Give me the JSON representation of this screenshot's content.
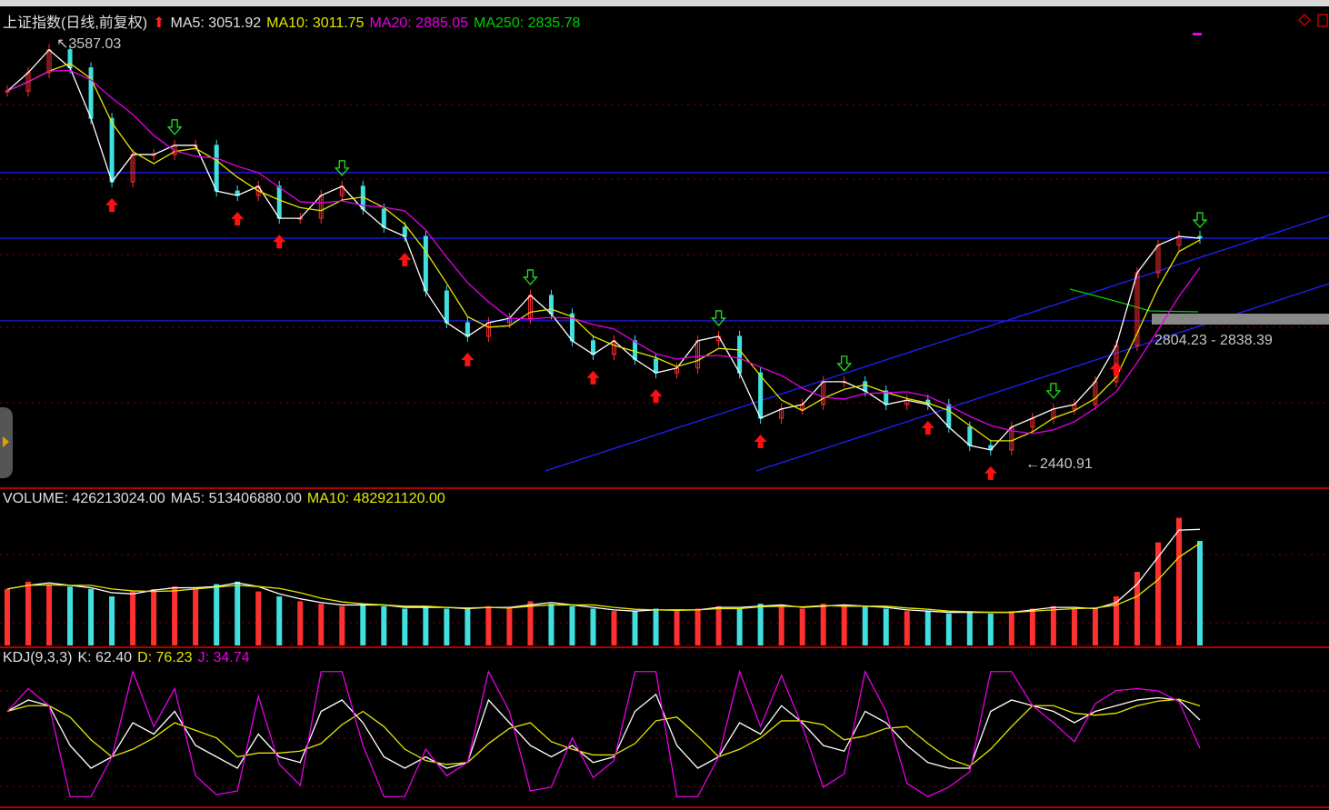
{
  "header": {
    "title": "上证指数(日线,前复权)",
    "ma5": "MA5: 3051.92",
    "ma10": "MA10: 3011.75",
    "ma20": "MA20: 2885.05",
    "ma250": "MA250: 2835.78"
  },
  "volume_header": {
    "volume": "VOLUME: 426213024.00",
    "ma5": "MA5: 513406880.00",
    "ma10": "MA10: 482921120.00"
  },
  "kdj_header": {
    "name": "KDJ(9,3,3)",
    "k": "K: 62.40",
    "d": "D: 76.23",
    "j": "J: 34.74"
  },
  "annotations": {
    "high": "3587.03",
    "low": "2440.91",
    "range": "2804.23 - 2838.39"
  },
  "colors": {
    "up": "#ff3030",
    "down": "#40e0e0",
    "ma5": "#ffffff",
    "ma10": "#e6e600",
    "ma20": "#e600e6",
    "ma250": "#00d000",
    "trendline": "#2020ff"
  },
  "chart_data": [
    {
      "type": "line",
      "title": "上证指数(日线,前复权)",
      "series": [
        {
          "name": "MA5",
          "values": [
            3451,
            3501,
            3563,
            3514,
            3377,
            3205,
            3279,
            3279,
            3304,
            3304,
            3180,
            3168,
            3193,
            3106,
            3106,
            3168,
            3193,
            3131,
            3082,
            3057,
            2909,
            2823,
            2786,
            2823,
            2835,
            2897,
            2847,
            2774,
            2737,
            2774,
            2724,
            2687,
            2700,
            2774,
            2786,
            2687,
            2564,
            2589,
            2601,
            2663,
            2663,
            2638,
            2601,
            2613,
            2601,
            2540,
            2490,
            2478,
            2540,
            2564,
            2589,
            2601,
            2663,
            2761,
            2958,
            3033,
            3057,
            3052
          ]
        }
      ],
      "ylim": [
        2420,
        3600
      ],
      "horizontal_levels": [
        3230,
        3052,
        2828
      ],
      "signals": [
        {
          "index": 5,
          "type": "buy"
        },
        {
          "index": 8,
          "type": "sell"
        },
        {
          "index": 11,
          "type": "buy"
        },
        {
          "index": 13,
          "type": "buy"
        },
        {
          "index": 16,
          "type": "sell"
        },
        {
          "index": 19,
          "type": "buy"
        },
        {
          "index": 22,
          "type": "buy"
        },
        {
          "index": 25,
          "type": "sell"
        },
        {
          "index": 28,
          "type": "buy"
        },
        {
          "index": 31,
          "type": "buy"
        },
        {
          "index": 34,
          "type": "sell"
        },
        {
          "index": 36,
          "type": "buy"
        },
        {
          "index": 40,
          "type": "sell"
        },
        {
          "index": 44,
          "type": "buy"
        },
        {
          "index": 47,
          "type": "buy"
        },
        {
          "index": 50,
          "type": "sell"
        },
        {
          "index": 53,
          "type": "buy"
        },
        {
          "index": 57,
          "type": "sell"
        }
      ]
    },
    {
      "type": "bar",
      "title": "VOLUME",
      "series": [
        {
          "name": "VOLUME",
          "values": [
            230,
            260,
            250,
            240,
            230,
            200,
            220,
            230,
            240,
            230,
            250,
            260,
            220,
            200,
            180,
            170,
            160,
            170,
            160,
            150,
            160,
            150,
            150,
            160,
            150,
            180,
            170,
            160,
            150,
            140,
            140,
            150,
            140,
            150,
            160,
            150,
            170,
            160,
            150,
            170,
            160,
            160,
            150,
            140,
            140,
            130,
            140,
            130,
            140,
            150,
            160,
            150,
            150,
            200,
            300,
            420,
            520,
            426
          ]
        }
      ],
      "unit": "million"
    },
    {
      "type": "line",
      "title": "KDJ(9,3,3)",
      "series": [
        {
          "name": "K",
          "values": [
            70,
            80,
            75,
            40,
            20,
            30,
            60,
            50,
            70,
            40,
            30,
            20,
            50,
            30,
            25,
            70,
            80,
            60,
            30,
            20,
            30,
            20,
            25,
            80,
            60,
            40,
            30,
            40,
            25,
            30,
            70,
            85,
            40,
            20,
            30,
            60,
            50,
            75,
            60,
            40,
            35,
            70,
            60,
            40,
            25,
            20,
            20,
            70,
            80,
            75,
            70,
            60,
            70,
            75,
            80,
            82,
            80,
            62.4
          ]
        }
      ],
      "ylim": [
        0,
        100
      ]
    }
  ]
}
